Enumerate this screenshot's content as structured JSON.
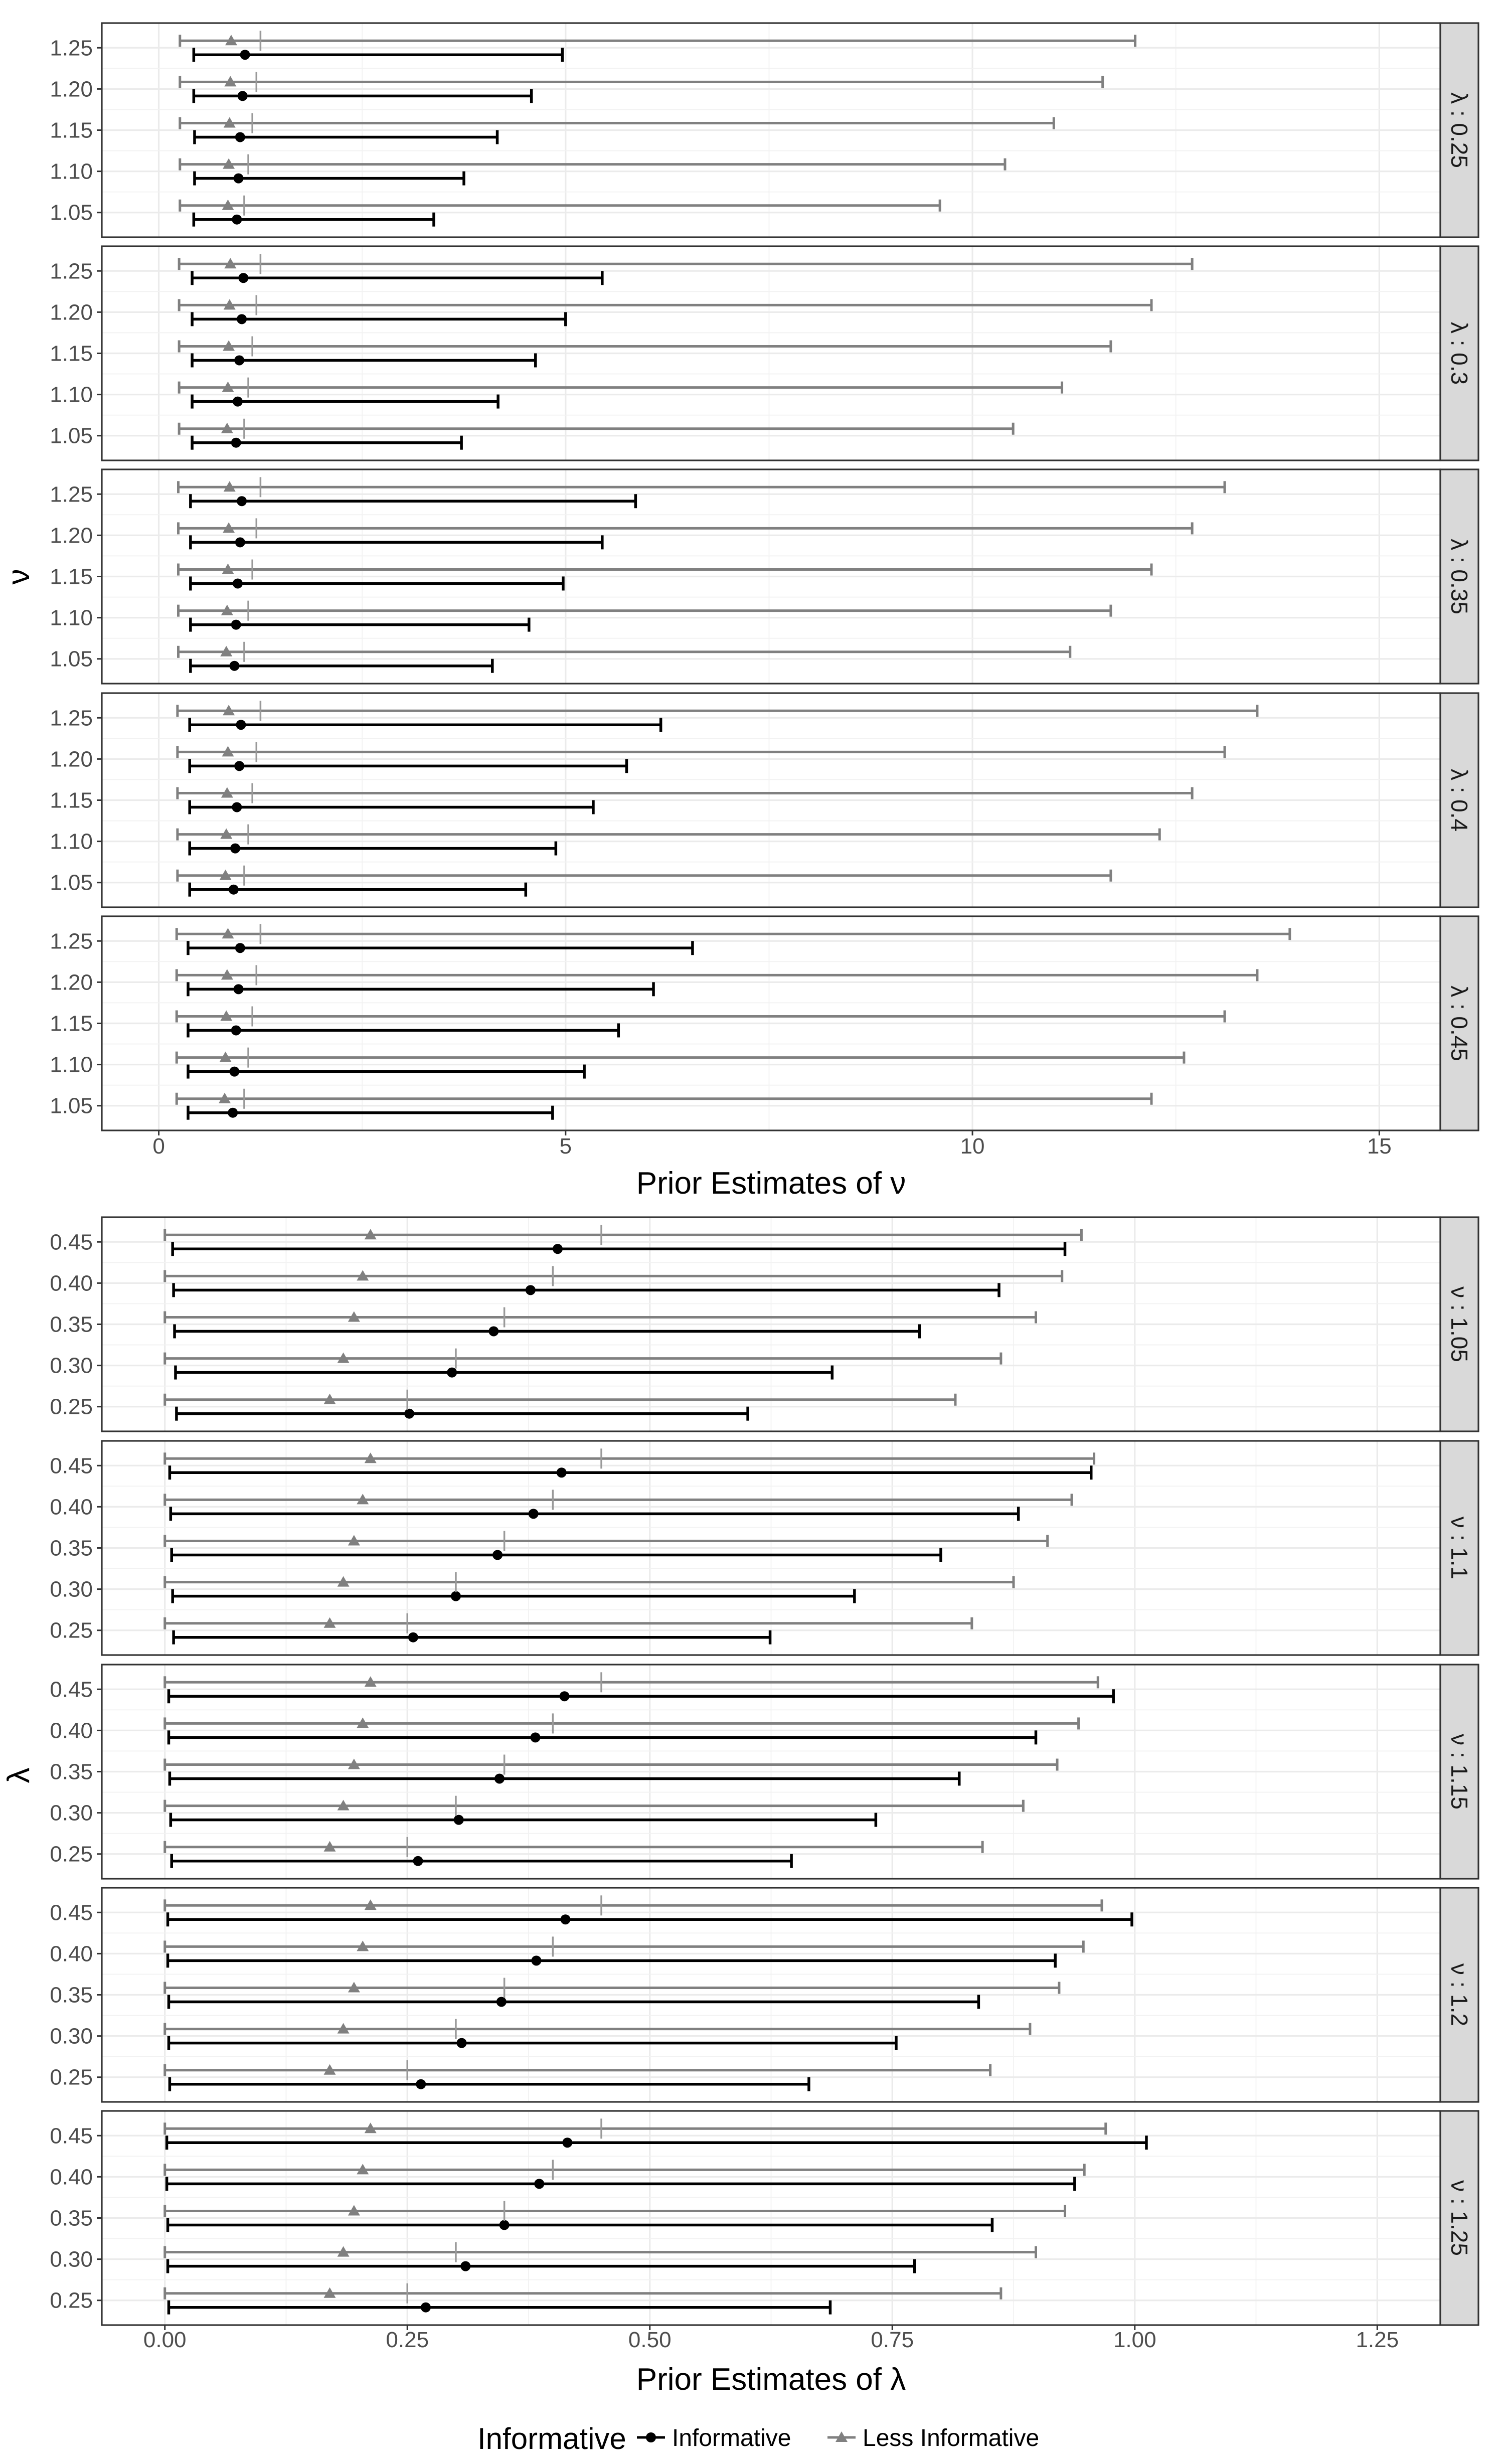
{
  "legend": {
    "title": "Informative",
    "items": [
      {
        "label": "Informative",
        "color": "#000000",
        "shape": "circle-icon"
      },
      {
        "label": "Less Informative",
        "color": "#808080",
        "shape": "triangle-icon"
      }
    ]
  },
  "chart_data": [
    {
      "type": "errorbar",
      "xlabel": "Prior Estimates of ν",
      "ylabel": "ν",
      "xlim": [
        -0.7,
        15.75
      ],
      "x_ticks": [
        0,
        5,
        10,
        15
      ],
      "x_tick_labels": [
        "0",
        "5",
        "10",
        "15"
      ],
      "categories": [
        "1.05",
        "1.10",
        "1.15",
        "1.20",
        "1.25"
      ],
      "facet_label_prefix": "λ : ",
      "series": [
        {
          "name": "Informative",
          "color": "#000000",
          "marker": "circle",
          "offset": -0.17
        },
        {
          "name": "Less Informative",
          "color": "#808080",
          "marker": "triangle",
          "offset": 0.17
        }
      ],
      "panels": [
        {
          "strip_label": "λ : 0.25",
          "lambda": 0.25,
          "true_values": [
            1.05,
            1.1,
            1.15,
            1.2,
            1.25
          ],
          "data": {
            "Informative": [
              {
                "est": 0.96,
                "lower": 0.43,
                "upper": 3.38
              },
              {
                "est": 0.98,
                "lower": 0.44,
                "upper": 3.75
              },
              {
                "est": 1.0,
                "lower": 0.44,
                "upper": 4.16
              },
              {
                "est": 1.03,
                "lower": 0.43,
                "upper": 4.58
              },
              {
                "est": 1.06,
                "lower": 0.43,
                "upper": 4.96
              }
            ],
            "Less Informative": [
              {
                "est": 0.85,
                "lower": 0.26,
                "upper": 9.6
              },
              {
                "est": 0.86,
                "lower": 0.26,
                "upper": 10.4
              },
              {
                "est": 0.87,
                "lower": 0.26,
                "upper": 11.0
              },
              {
                "est": 0.88,
                "lower": 0.26,
                "upper": 11.6
              },
              {
                "est": 0.89,
                "lower": 0.26,
                "upper": 12.0
              }
            ]
          }
        },
        {
          "strip_label": "λ : 0.3",
          "lambda": 0.3,
          "true_values": [
            1.05,
            1.1,
            1.15,
            1.2,
            1.25
          ],
          "data": {
            "Informative": [
              {
                "est": 0.95,
                "lower": 0.41,
                "upper": 3.72
              },
              {
                "est": 0.97,
                "lower": 0.41,
                "upper": 4.17
              },
              {
                "est": 0.99,
                "lower": 0.41,
                "upper": 4.63
              },
              {
                "est": 1.02,
                "lower": 0.41,
                "upper": 5.0
              },
              {
                "est": 1.04,
                "lower": 0.41,
                "upper": 5.45
              }
            ],
            "Less Informative": [
              {
                "est": 0.84,
                "lower": 0.25,
                "upper": 10.5
              },
              {
                "est": 0.85,
                "lower": 0.25,
                "upper": 11.1
              },
              {
                "est": 0.86,
                "lower": 0.25,
                "upper": 11.7
              },
              {
                "est": 0.87,
                "lower": 0.25,
                "upper": 12.2
              },
              {
                "est": 0.88,
                "lower": 0.25,
                "upper": 12.7
              }
            ]
          }
        },
        {
          "strip_label": "λ : 0.35",
          "lambda": 0.35,
          "true_values": [
            1.05,
            1.1,
            1.15,
            1.2,
            1.25
          ],
          "data": {
            "Informative": [
              {
                "est": 0.93,
                "lower": 0.39,
                "upper": 4.1
              },
              {
                "est": 0.95,
                "lower": 0.39,
                "upper": 4.55
              },
              {
                "est": 0.97,
                "lower": 0.39,
                "upper": 4.97
              },
              {
                "est": 1.0,
                "lower": 0.39,
                "upper": 5.45
              },
              {
                "est": 1.02,
                "lower": 0.39,
                "upper": 5.86
              }
            ],
            "Less Informative": [
              {
                "est": 0.83,
                "lower": 0.24,
                "upper": 11.2
              },
              {
                "est": 0.84,
                "lower": 0.24,
                "upper": 11.7
              },
              {
                "est": 0.85,
                "lower": 0.24,
                "upper": 12.2
              },
              {
                "est": 0.86,
                "lower": 0.24,
                "upper": 12.7
              },
              {
                "est": 0.87,
                "lower": 0.24,
                "upper": 13.1
              }
            ]
          }
        },
        {
          "strip_label": "λ : 0.4",
          "lambda": 0.4,
          "true_values": [
            1.05,
            1.1,
            1.15,
            1.2,
            1.25
          ],
          "data": {
            "Informative": [
              {
                "est": 0.92,
                "lower": 0.38,
                "upper": 4.51
              },
              {
                "est": 0.94,
                "lower": 0.38,
                "upper": 4.88
              },
              {
                "est": 0.96,
                "lower": 0.38,
                "upper": 5.34
              },
              {
                "est": 0.99,
                "lower": 0.38,
                "upper": 5.75
              },
              {
                "est": 1.01,
                "lower": 0.38,
                "upper": 6.17
              }
            ],
            "Less Informative": [
              {
                "est": 0.82,
                "lower": 0.23,
                "upper": 11.7
              },
              {
                "est": 0.83,
                "lower": 0.23,
                "upper": 12.3
              },
              {
                "est": 0.84,
                "lower": 0.23,
                "upper": 12.7
              },
              {
                "est": 0.85,
                "lower": 0.23,
                "upper": 13.1
              },
              {
                "est": 0.86,
                "lower": 0.23,
                "upper": 13.5
              }
            ]
          }
        },
        {
          "strip_label": "λ : 0.45",
          "lambda": 0.45,
          "true_values": [
            1.05,
            1.1,
            1.15,
            1.2,
            1.25
          ],
          "data": {
            "Informative": [
              {
                "est": 0.91,
                "lower": 0.36,
                "upper": 4.84
              },
              {
                "est": 0.93,
                "lower": 0.36,
                "upper": 5.23
              },
              {
                "est": 0.95,
                "lower": 0.36,
                "upper": 5.65
              },
              {
                "est": 0.98,
                "lower": 0.36,
                "upper": 6.08
              },
              {
                "est": 1.0,
                "lower": 0.36,
                "upper": 6.56
              }
            ],
            "Less Informative": [
              {
                "est": 0.81,
                "lower": 0.22,
                "upper": 12.2
              },
              {
                "est": 0.82,
                "lower": 0.22,
                "upper": 12.6
              },
              {
                "est": 0.83,
                "lower": 0.22,
                "upper": 13.1
              },
              {
                "est": 0.84,
                "lower": 0.22,
                "upper": 13.5
              },
              {
                "est": 0.85,
                "lower": 0.22,
                "upper": 13.9
              }
            ]
          }
        }
      ]
    },
    {
      "type": "errorbar",
      "xlabel": "Prior Estimates of λ",
      "ylabel": "λ",
      "xlim": [
        -0.065,
        1.315
      ],
      "x_ticks": [
        0,
        0.25,
        0.5,
        0.75,
        1.0,
        1.25
      ],
      "x_tick_labels": [
        "0.00",
        "0.25",
        "0.50",
        "0.75",
        "1.00",
        "1.25"
      ],
      "categories": [
        "0.25",
        "0.30",
        "0.35",
        "0.40",
        "0.45"
      ],
      "facet_label_prefix": "ν : ",
      "series": [
        {
          "name": "Informative",
          "color": "#000000",
          "marker": "circle",
          "offset": -0.17
        },
        {
          "name": "Less Informative",
          "color": "#808080",
          "marker": "triangle",
          "offset": 0.17
        }
      ],
      "panels": [
        {
          "strip_label": "ν : 1.05",
          "nu": 1.05,
          "true_values": [
            0.25,
            0.3,
            0.35,
            0.4,
            0.45
          ],
          "data": {
            "Informative": [
              {
                "est": 0.252,
                "lower": 0.012,
                "upper": 0.601
              },
              {
                "est": 0.296,
                "lower": 0.011,
                "upper": 0.688
              },
              {
                "est": 0.339,
                "lower": 0.01,
                "upper": 0.778
              },
              {
                "est": 0.377,
                "lower": 0.009,
                "upper": 0.86
              },
              {
                "est": 0.405,
                "lower": 0.008,
                "upper": 0.928
              }
            ],
            "Less Informative": [
              {
                "est": 0.17,
                "lower": 0.0,
                "upper": 0.815
              },
              {
                "est": 0.184,
                "lower": 0.0,
                "upper": 0.862
              },
              {
                "est": 0.195,
                "lower": 0.0,
                "upper": 0.898
              },
              {
                "est": 0.204,
                "lower": 0.0,
                "upper": 0.925
              },
              {
                "est": 0.212,
                "lower": 0.0,
                "upper": 0.945
              }
            ]
          }
        },
        {
          "strip_label": "ν : 1.1",
          "nu": 1.1,
          "true_values": [
            0.25,
            0.3,
            0.35,
            0.4,
            0.45
          ],
          "data": {
            "Informative": [
              {
                "est": 0.256,
                "lower": 0.009,
                "upper": 0.624
              },
              {
                "est": 0.3,
                "lower": 0.008,
                "upper": 0.711
              },
              {
                "est": 0.343,
                "lower": 0.007,
                "upper": 0.8
              },
              {
                "est": 0.38,
                "lower": 0.006,
                "upper": 0.88
              },
              {
                "est": 0.409,
                "lower": 0.005,
                "upper": 0.955
              }
            ],
            "Less Informative": [
              {
                "est": 0.17,
                "lower": 0.0,
                "upper": 0.832
              },
              {
                "est": 0.184,
                "lower": 0.0,
                "upper": 0.875
              },
              {
                "est": 0.195,
                "lower": 0.0,
                "upper": 0.91
              },
              {
                "est": 0.204,
                "lower": 0.0,
                "upper": 0.935
              },
              {
                "est": 0.212,
                "lower": 0.0,
                "upper": 0.958
              }
            ]
          }
        },
        {
          "strip_label": "ν : 1.15",
          "nu": 1.15,
          "true_values": [
            0.25,
            0.3,
            0.35,
            0.4,
            0.45
          ],
          "data": {
            "Informative": [
              {
                "est": 0.261,
                "lower": 0.007,
                "upper": 0.646
              },
              {
                "est": 0.303,
                "lower": 0.006,
                "upper": 0.733
              },
              {
                "est": 0.345,
                "lower": 0.005,
                "upper": 0.819
              },
              {
                "est": 0.382,
                "lower": 0.004,
                "upper": 0.898
              },
              {
                "est": 0.412,
                "lower": 0.004,
                "upper": 0.978
              }
            ],
            "Less Informative": [
              {
                "est": 0.17,
                "lower": 0.0,
                "upper": 0.843
              },
              {
                "est": 0.184,
                "lower": 0.0,
                "upper": 0.885
              },
              {
                "est": 0.195,
                "lower": 0.0,
                "upper": 0.92
              },
              {
                "est": 0.204,
                "lower": 0.0,
                "upper": 0.942
              },
              {
                "est": 0.212,
                "lower": 0.0,
                "upper": 0.962
              }
            ]
          }
        },
        {
          "strip_label": "ν : 1.2",
          "nu": 1.2,
          "true_values": [
            0.25,
            0.3,
            0.35,
            0.4,
            0.45
          ],
          "data": {
            "Informative": [
              {
                "est": 0.264,
                "lower": 0.005,
                "upper": 0.664
              },
              {
                "est": 0.306,
                "lower": 0.004,
                "upper": 0.754
              },
              {
                "est": 0.347,
                "lower": 0.004,
                "upper": 0.839
              },
              {
                "est": 0.383,
                "lower": 0.003,
                "upper": 0.918
              },
              {
                "est": 0.413,
                "lower": 0.003,
                "upper": 0.997
              }
            ],
            "Less Informative": [
              {
                "est": 0.17,
                "lower": 0.0,
                "upper": 0.851
              },
              {
                "est": 0.184,
                "lower": 0.0,
                "upper": 0.892
              },
              {
                "est": 0.195,
                "lower": 0.0,
                "upper": 0.922
              },
              {
                "est": 0.204,
                "lower": 0.0,
                "upper": 0.947
              },
              {
                "est": 0.212,
                "lower": 0.0,
                "upper": 0.966
              }
            ]
          }
        },
        {
          "strip_label": "ν : 1.25",
          "nu": 1.25,
          "true_values": [
            0.25,
            0.3,
            0.35,
            0.4,
            0.45
          ],
          "data": {
            "Informative": [
              {
                "est": 0.269,
                "lower": 0.004,
                "upper": 0.686
              },
              {
                "est": 0.31,
                "lower": 0.003,
                "upper": 0.773
              },
              {
                "est": 0.35,
                "lower": 0.003,
                "upper": 0.853
              },
              {
                "est": 0.386,
                "lower": 0.002,
                "upper": 0.938
              },
              {
                "est": 0.415,
                "lower": 0.002,
                "upper": 1.012
              }
            ],
            "Less Informative": [
              {
                "est": 0.17,
                "lower": 0.0,
                "upper": 0.862
              },
              {
                "est": 0.184,
                "lower": 0.0,
                "upper": 0.898
              },
              {
                "est": 0.195,
                "lower": 0.0,
                "upper": 0.928
              },
              {
                "est": 0.204,
                "lower": 0.0,
                "upper": 0.948
              },
              {
                "est": 0.212,
                "lower": 0.0,
                "upper": 0.97
              }
            ]
          }
        }
      ]
    }
  ]
}
